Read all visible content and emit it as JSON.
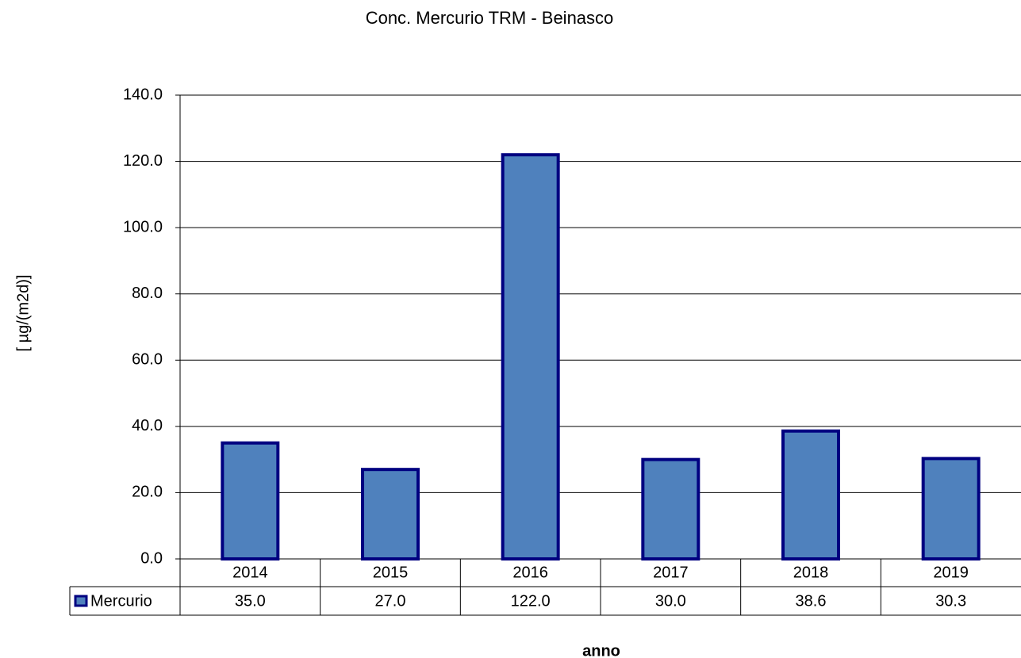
{
  "chart_data": {
    "type": "bar",
    "title": "Conc. Mercurio TRM - Beinasco",
    "x_label": "anno",
    "y_label": "[ µg/(m2d)]",
    "categories": [
      "2014",
      "2015",
      "2016",
      "2017",
      "2018",
      "2019"
    ],
    "series": [
      {
        "name": "Mercurio",
        "color": "#4f81bd",
        "edgecolor": "#000080",
        "values": [
          35,
          27,
          122,
          30,
          38.6,
          30.3
        ],
        "value_labels": [
          "35.0",
          "27.0",
          "122.0",
          "30.0",
          "38.6",
          "30.3"
        ]
      }
    ],
    "ylim": [
      0,
      140
    ],
    "yticks": [
      {
        "value": 0,
        "label": "0.0"
      },
      {
        "value": 20,
        "label": "20.0"
      },
      {
        "value": 40,
        "label": "40.0"
      },
      {
        "value": 60,
        "label": "60.0"
      },
      {
        "value": 80,
        "label": "80.0"
      },
      {
        "value": 100,
        "label": "100.0"
      },
      {
        "value": 120,
        "label": "120.0"
      },
      {
        "value": 140,
        "label": "140.0"
      }
    ],
    "grid": true
  }
}
